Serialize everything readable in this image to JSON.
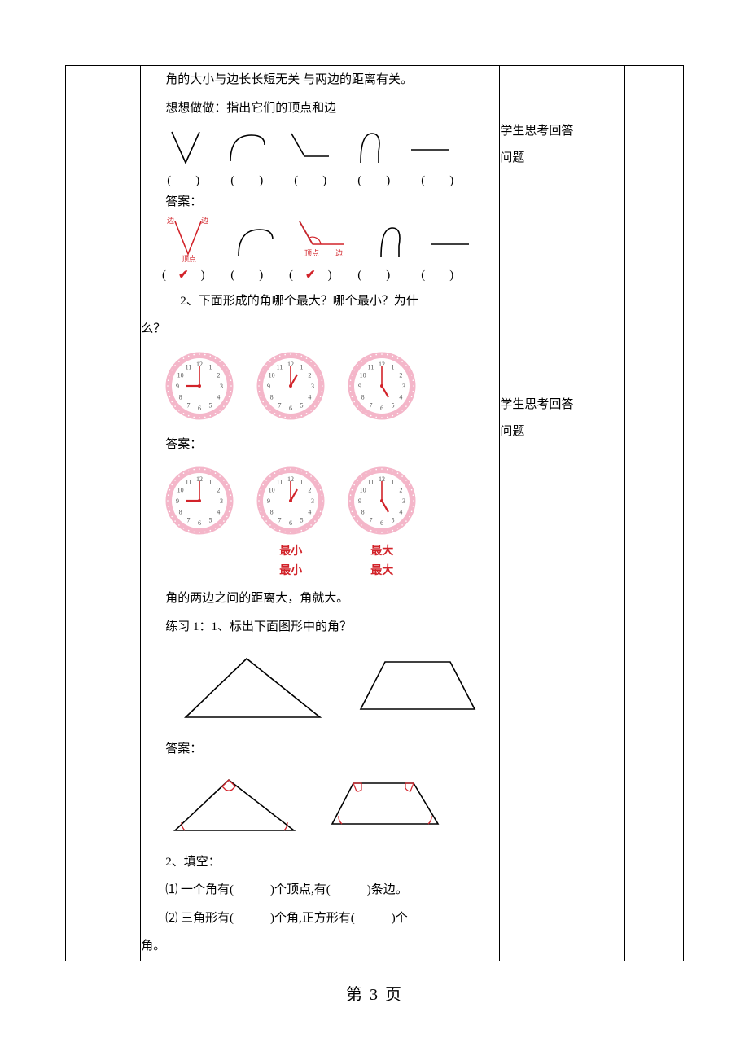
{
  "text": {
    "line1": "角的大小与边长长短无关 与两边的距离有关。",
    "line2": "想想做做：指出它们的顶点和边",
    "p_blank": "(　　)",
    "p_check": "(　✔　)",
    "ans_label": "答案：",
    "q2": "2、下面形成的角哪个最大？哪个最小？为什",
    "q2b": "么？",
    "min_label": "最小",
    "max_label": "最大",
    "line_dist": "角的两边之间的距离大，角就大。",
    "ex1": "练习 1：1、标出下面图形中的角？",
    "fill_title": "2、填空：",
    "fill1": "⑴ 一个角有(　　　)个顶点,有(　　　)条边。",
    "fill2": "⑵ 三角形有(　　　)个角,正方形有(　　　)个",
    "fill2b": "角。",
    "side1": "学生思考回答",
    "side2": "问题",
    "page_num": "第 3 页"
  },
  "svg": {
    "labels": {
      "edge": "边",
      "vertex": "顶点"
    },
    "colors": {
      "black": "#000000",
      "red": "#d2232a",
      "clock_ring": "#f4b6c9",
      "clock_face": "#ffffff",
      "clock_tick": "#555555"
    },
    "clock_hands": [
      {
        "hour": 9,
        "min": 0
      },
      {
        "hour": 1,
        "min": 0
      },
      {
        "hour": 5,
        "min": 0
      }
    ]
  }
}
